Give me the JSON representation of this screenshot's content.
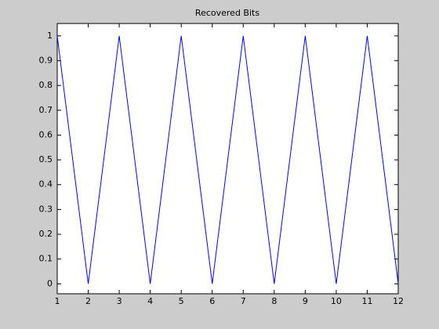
{
  "chart_data": {
    "type": "line",
    "title": "Recovered Bits",
    "x": [
      1,
      2,
      3,
      4,
      5,
      6,
      7,
      8,
      9,
      10,
      11,
      12
    ],
    "series": [
      {
        "color": "#0000ff",
        "values": [
          1,
          0,
          1,
          0,
          1,
          0,
          1,
          0,
          1,
          0,
          1,
          0
        ]
      }
    ],
    "xlim": [
      1,
      12
    ],
    "xticks": [
      1,
      2,
      3,
      4,
      5,
      6,
      7,
      8,
      9,
      10,
      11,
      12
    ],
    "ylim": [
      -0.04,
      1.05
    ],
    "yticks": [
      0,
      0.1,
      0.2,
      0.3,
      0.4,
      0.5,
      0.6,
      0.7,
      0.8,
      0.9,
      1
    ]
  }
}
